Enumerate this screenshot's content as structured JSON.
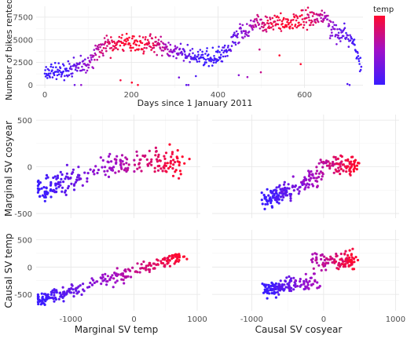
{
  "chart_data": [
    {
      "id": "bikes-over-time",
      "type": "scatter",
      "xlabel": "Days since 1 January 2011",
      "ylabel": "Number of bikes rented",
      "xlim": [
        -20,
        735
      ],
      "ylim": [
        -300,
        8700
      ],
      "xticks": [
        0,
        200,
        400,
        600
      ],
      "yticks": [
        0,
        2500,
        5000,
        7500
      ],
      "grid": true,
      "color_variable": "temp",
      "legend": {
        "title": "temp",
        "placement": "right",
        "gradient": [
          "#3a1cff",
          "#ff0a2e"
        ]
      },
      "trend": [
        [
          0,
          1300
        ],
        [
          30,
          1450
        ],
        [
          60,
          1750
        ],
        [
          90,
          2200
        ],
        [
          110,
          2900
        ],
        [
          130,
          4000
        ],
        [
          160,
          4700
        ],
        [
          180,
          4900
        ],
        [
          200,
          4500
        ],
        [
          230,
          4400
        ],
        [
          260,
          4500
        ],
        [
          290,
          4000
        ],
        [
          320,
          3400
        ],
        [
          350,
          3200
        ],
        [
          380,
          2800
        ],
        [
          400,
          3000
        ],
        [
          420,
          3600
        ],
        [
          440,
          5200
        ],
        [
          470,
          6300
        ],
        [
          500,
          6700
        ],
        [
          530,
          6800
        ],
        [
          560,
          6900
        ],
        [
          590,
          7300
        ],
        [
          620,
          7400
        ],
        [
          650,
          7300
        ],
        [
          670,
          5600
        ],
        [
          700,
          5400
        ],
        [
          715,
          4300
        ],
        [
          731,
          2000
        ]
      ]
    },
    {
      "id": "marginal-temp-vs-marginal-cosyear",
      "type": "scatter",
      "xlabel": "",
      "ylabel": "Marginal SV cosyear",
      "xlim": [
        -1550,
        1050
      ],
      "ylim": [
        -550,
        560
      ],
      "xticks": [
        -1000,
        0,
        1000
      ],
      "yticks": [
        -500,
        0,
        500
      ],
      "grid": true
    },
    {
      "id": "causal-cosyear-vs-marginal-cosyear",
      "type": "scatter",
      "xlabel": "",
      "ylabel": "",
      "xlim": [
        -1550,
        1050
      ],
      "ylim": [
        -550,
        560
      ],
      "xticks": [
        -1000,
        0,
        1000
      ],
      "yticks": [
        -500,
        0,
        500
      ],
      "grid": true
    },
    {
      "id": "marginal-temp-vs-causal-temp",
      "type": "scatter",
      "xlabel": "Marginal SV temp",
      "ylabel": "Causal SV temp",
      "xlim": [
        -1550,
        1050
      ],
      "ylim": [
        -800,
        680
      ],
      "xticks": [
        -1000,
        0,
        1000
      ],
      "yticks": [
        -500,
        0,
        500
      ],
      "grid": true
    },
    {
      "id": "causal-cosyear-vs-causal-temp",
      "type": "scatter",
      "xlabel": "Causal SV cosyear",
      "ylabel": "",
      "xlim": [
        -1550,
        1050
      ],
      "ylim": [
        -800,
        680
      ],
      "xticks": [
        -1000,
        0,
        1000
      ],
      "yticks": [
        -500,
        0,
        500
      ],
      "grid": true
    }
  ]
}
